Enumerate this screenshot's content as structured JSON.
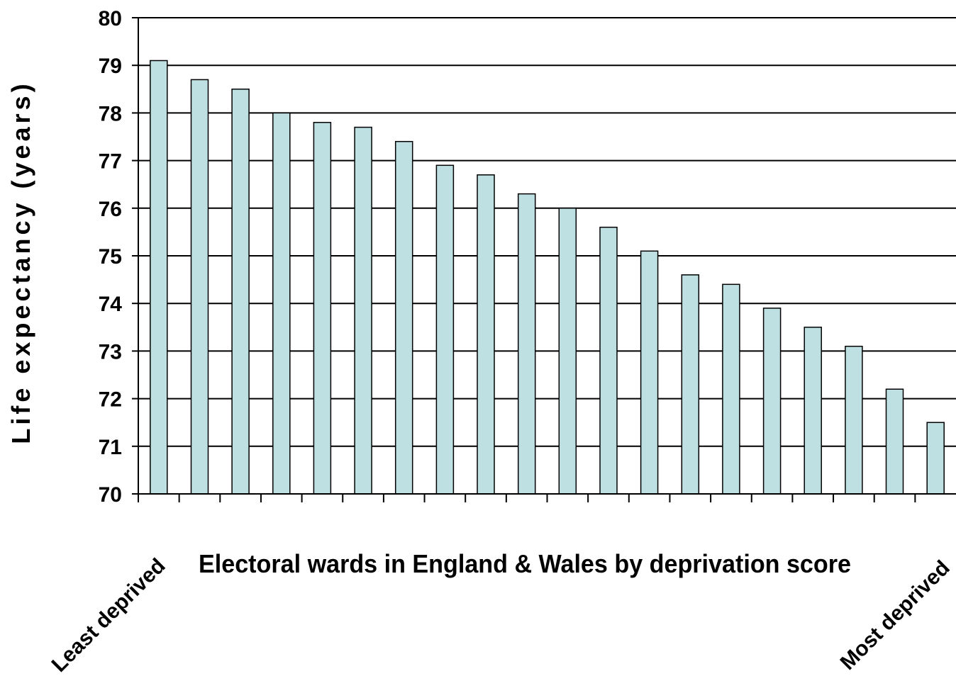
{
  "chart_data": {
    "type": "bar",
    "title": "",
    "xlabel": "Electoral wards in England & Wales by deprivation score",
    "ylabel": "Life expectancy (years)",
    "ylim": [
      70,
      80
    ],
    "yticks": [
      70,
      71,
      72,
      73,
      74,
      75,
      76,
      77,
      78,
      79,
      80
    ],
    "grid": true,
    "legend": "none",
    "x_end_labels": {
      "left": "Least deprived",
      "right": "Most deprived"
    },
    "values": [
      79.1,
      78.7,
      78.5,
      78.0,
      77.8,
      77.7,
      77.4,
      76.9,
      76.7,
      76.3,
      76.0,
      75.6,
      75.1,
      74.6,
      74.4,
      73.9,
      73.5,
      73.1,
      72.2,
      71.5
    ],
    "colors": {
      "bar_fill": "#BFE0E3",
      "bar_stroke": "#000000",
      "grid": "#000000"
    }
  }
}
